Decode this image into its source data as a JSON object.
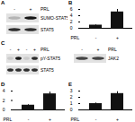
{
  "chart_data": [
    {
      "type": "bar",
      "panel": "B",
      "x_label": "PRL",
      "categories": [
        "-",
        "+"
      ],
      "values": [
        1,
        5.2
      ],
      "errors": [
        0.1,
        0.8
      ],
      "color": "#111111",
      "ylim": [
        0,
        6
      ],
      "yticks": [
        0,
        2,
        4,
        6
      ]
    },
    {
      "type": "bar",
      "panel": "D",
      "x_label": "PRL",
      "categories": [
        "-",
        "+"
      ],
      "values": [
        1,
        3.4
      ],
      "errors": [
        0.1,
        0.4
      ],
      "color": "#111111",
      "ylim": [
        0,
        4
      ],
      "yticks": [
        0,
        2,
        4
      ]
    },
    {
      "type": "bar",
      "panel": "E",
      "x_label": "PRL",
      "categories": [
        "-",
        "+"
      ],
      "values": [
        1,
        2.6
      ],
      "errors": [
        0.1,
        0.3
      ],
      "color": "#111111",
      "ylim": [
        0,
        3
      ],
      "yticks": [
        0,
        1,
        2,
        3
      ]
    }
  ],
  "blots": [
    {
      "panel": "A",
      "header": "PRL",
      "lanes": [
        "-",
        "+"
      ],
      "rows": [
        {
          "label": "SUMO-STAT5",
          "intensity": [
            0.2,
            0.9
          ]
        },
        {
          "label": "STAT5",
          "intensity": [
            0.8,
            0.8
          ]
        }
      ]
    },
    {
      "panel": "C",
      "header": "PRL",
      "lanes": [
        "-",
        "+",
        "-",
        "+"
      ],
      "rows": [
        {
          "label": "pY-STAT5",
          "intensity": [
            0.1,
            0.9,
            0.1,
            0.8
          ]
        },
        {
          "label": "STAT5",
          "intensity": [
            0.8,
            0.8,
            0.8,
            0.8
          ]
        }
      ]
    },
    {
      "panel": "",
      "header": "PRL",
      "lanes": [
        "-",
        "+"
      ],
      "rows": [
        {
          "label": "JAK2",
          "intensity": [
            0.7,
            0.7
          ]
        }
      ]
    }
  ]
}
